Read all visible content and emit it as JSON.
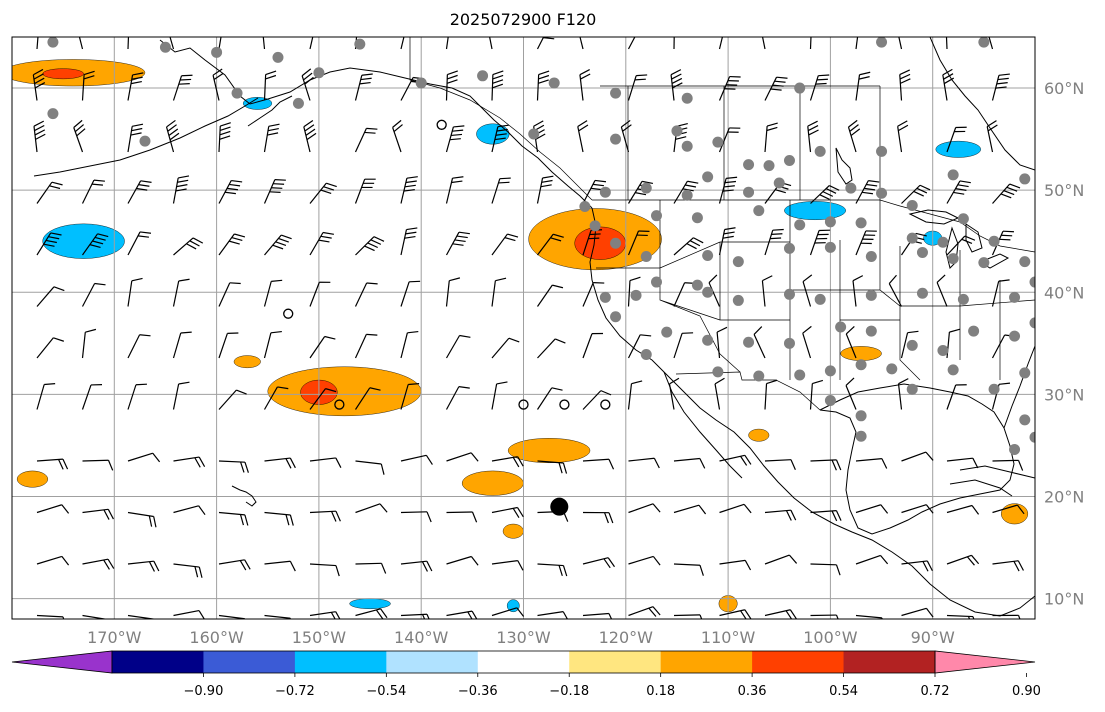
{
  "title": "2025072900 F120",
  "map": {
    "lon_range": [
      -180,
      -80
    ],
    "lat_range": [
      8,
      65
    ],
    "grid": true,
    "lon_ticks": [
      {
        "value": -170,
        "label": "170°W"
      },
      {
        "value": -160,
        "label": "160°W"
      },
      {
        "value": -150,
        "label": "150°W"
      },
      {
        "value": -140,
        "label": "140°W"
      },
      {
        "value": -130,
        "label": "130°W"
      },
      {
        "value": -120,
        "label": "120°W"
      },
      {
        "value": -110,
        "label": "110°W"
      },
      {
        "value": -100,
        "label": "100°W"
      },
      {
        "value": -90,
        "label": "90°W"
      }
    ],
    "lat_ticks": [
      {
        "value": 10,
        "label": "10°N"
      },
      {
        "value": 20,
        "label": "20°N"
      },
      {
        "value": 30,
        "label": "30°N"
      },
      {
        "value": 40,
        "label": "40°N"
      },
      {
        "value": 50,
        "label": "50°N"
      },
      {
        "value": 60,
        "label": "60°N"
      }
    ],
    "label_color": "#808080"
  },
  "colorbar": {
    "levels": [
      -0.9,
      -0.72,
      -0.54,
      -0.36,
      -0.18,
      0.18,
      0.36,
      0.54,
      0.72,
      0.9
    ],
    "labels": [
      "−0.90",
      "−0.72",
      "−0.54",
      "−0.36",
      "−0.18",
      "0.18",
      "0.36",
      "0.54",
      "0.72",
      "0.90"
    ],
    "colors": [
      "#9933cc",
      "#000088",
      "#3b5bd6",
      "#00bfff",
      "#b0e2ff",
      "#ffffff",
      "#ffe680",
      "#ffa500",
      "#ff4000",
      "#b22222",
      "#ff88aa"
    ],
    "extend": "both"
  },
  "shading": [
    {
      "color": "#ffa500",
      "lon": -174,
      "lat": 61.5,
      "rx": 7,
      "ry": 1.3
    },
    {
      "color": "#ff4000",
      "lon": -175,
      "lat": 61.4,
      "rx": 2,
      "ry": 0.5
    },
    {
      "color": "#00bfff",
      "lon": -173,
      "lat": 45,
      "rx": 4,
      "ry": 1.7
    },
    {
      "color": "#00bfff",
      "lon": -156,
      "lat": 58.5,
      "rx": 1.4,
      "ry": 0.6
    },
    {
      "color": "#00bfff",
      "lon": -133,
      "lat": 55.5,
      "rx": 1.6,
      "ry": 1
    },
    {
      "color": "#00bfff",
      "lon": -87.5,
      "lat": 54,
      "rx": 2.2,
      "ry": 0.8
    },
    {
      "color": "#00bfff",
      "lon": -101.5,
      "lat": 48,
      "rx": 3,
      "ry": 0.9
    },
    {
      "color": "#00bfff",
      "lon": -90,
      "lat": 45.3,
      "rx": 0.9,
      "ry": 0.7
    },
    {
      "color": "#ffa500",
      "lon": -123,
      "lat": 45.2,
      "rx": 6.5,
      "ry": 3
    },
    {
      "color": "#ff4000",
      "lon": -122.5,
      "lat": 44.8,
      "rx": 2.5,
      "ry": 1.6
    },
    {
      "color": "#ffa500",
      "lon": -147.5,
      "lat": 30.3,
      "rx": 7.5,
      "ry": 2.4
    },
    {
      "color": "#ff4000",
      "lon": -150,
      "lat": 30.2,
      "rx": 1.8,
      "ry": 1.2
    },
    {
      "color": "#ffa500",
      "lon": -157,
      "lat": 33.2,
      "rx": 1.3,
      "ry": 0.6
    },
    {
      "color": "#ffa500",
      "lon": -127.5,
      "lat": 24.5,
      "rx": 4,
      "ry": 1.2
    },
    {
      "color": "#ffa500",
      "lon": -133,
      "lat": 21.3,
      "rx": 3,
      "ry": 1.2
    },
    {
      "color": "#ffa500",
      "lon": -178,
      "lat": 21.7,
      "rx": 1.5,
      "ry": 0.8
    },
    {
      "color": "#ffa500",
      "lon": -131,
      "lat": 16.6,
      "rx": 1,
      "ry": 0.7
    },
    {
      "color": "#ffa500",
      "lon": -97,
      "lat": 34,
      "rx": 2,
      "ry": 0.7
    },
    {
      "color": "#ffa500",
      "lon": -107,
      "lat": 26,
      "rx": 1,
      "ry": 0.6
    },
    {
      "color": "#ffa500",
      "lon": -82,
      "lat": 18.3,
      "rx": 1.3,
      "ry": 1
    },
    {
      "color": "#ffa500",
      "lon": -110,
      "lat": 9.5,
      "rx": 0.9,
      "ry": 0.8
    },
    {
      "color": "#00bfff",
      "lon": -131,
      "lat": 9.3,
      "rx": 0.6,
      "ry": 0.6
    },
    {
      "color": "#00bfff",
      "lon": -145,
      "lat": 9.5,
      "rx": 2,
      "ry": 0.5
    }
  ],
  "stations": [
    [
      -176,
      64.5
    ],
    [
      -165,
      64
    ],
    [
      -160,
      63.5
    ],
    [
      -154,
      63
    ],
    [
      -146,
      64.3
    ],
    [
      -150,
      61.5
    ],
    [
      -140,
      60.5
    ],
    [
      -134,
      61.2
    ],
    [
      -127,
      60.5
    ],
    [
      -121,
      59.5
    ],
    [
      -114,
      59
    ],
    [
      -103,
      60
    ],
    [
      -95,
      64.5
    ],
    [
      -85,
      64.5
    ],
    [
      -176,
      57.5
    ],
    [
      -167,
      54.8
    ],
    [
      -158,
      59.5
    ],
    [
      -152,
      58.5
    ],
    [
      -129,
      55.5
    ],
    [
      -121,
      55
    ],
    [
      -115,
      55.8
    ],
    [
      -114,
      54.3
    ],
    [
      -111,
      54.7
    ],
    [
      -108,
      52.5
    ],
    [
      -106,
      52.4
    ],
    [
      -104,
      52.9
    ],
    [
      -101,
      53.8
    ],
    [
      -95,
      53.8
    ],
    [
      -88,
      51.5
    ],
    [
      -122,
      49.8
    ],
    [
      -118,
      50.2
    ],
    [
      -114,
      49.5
    ],
    [
      -112,
      51.3
    ],
    [
      -108,
      49.8
    ],
    [
      -105,
      50.7
    ],
    [
      -98,
      50.2
    ],
    [
      -95,
      49.7
    ],
    [
      -92,
      48.5
    ],
    [
      -87,
      47.2
    ],
    [
      -81,
      51.1
    ],
    [
      -124,
      48.4
    ],
    [
      -123,
      46.5
    ],
    [
      -121,
      44.8
    ],
    [
      -117,
      47.5
    ],
    [
      -113,
      47.3
    ],
    [
      -107,
      48
    ],
    [
      -103,
      46.6
    ],
    [
      -100,
      46.9
    ],
    [
      -97,
      46.8
    ],
    [
      -92,
      45.3
    ],
    [
      -89,
      44.9
    ],
    [
      -84,
      45
    ],
    [
      -81,
      43
    ],
    [
      -118,
      43.5
    ],
    [
      -112,
      43.6
    ],
    [
      -109,
      43
    ],
    [
      -104,
      44.3
    ],
    [
      -100,
      44.4
    ],
    [
      -96,
      43.5
    ],
    [
      -91,
      43.9
    ],
    [
      -88,
      43.3
    ],
    [
      -85,
      42.9
    ],
    [
      -122,
      39.5
    ],
    [
      -119,
      39.7
    ],
    [
      -117,
      41
    ],
    [
      -113,
      40.7
    ],
    [
      -112,
      40
    ],
    [
      -109,
      39.2
    ],
    [
      -104,
      39.8
    ],
    [
      -101,
      39.3
    ],
    [
      -96,
      39.7
    ],
    [
      -91,
      39.9
    ],
    [
      -87,
      39.3
    ],
    [
      -82,
      39.5
    ],
    [
      -80,
      41
    ],
    [
      -121,
      37.6
    ],
    [
      -116,
      36.1
    ],
    [
      -112,
      35.3
    ],
    [
      -108,
      35.1
    ],
    [
      -104,
      35
    ],
    [
      -99,
      36.6
    ],
    [
      -96,
      36.2
    ],
    [
      -92,
      34.8
    ],
    [
      -89,
      34.3
    ],
    [
      -86,
      36.2
    ],
    [
      -82,
      35.7
    ],
    [
      -80,
      37
    ],
    [
      -118,
      33.9
    ],
    [
      -111,
      32.2
    ],
    [
      -107,
      31.8
    ],
    [
      -103,
      31.9
    ],
    [
      -100,
      32.3
    ],
    [
      -97,
      32.9
    ],
    [
      -94,
      32.5
    ],
    [
      -92,
      30.5
    ],
    [
      -88,
      32.4
    ],
    [
      -84,
      30.5
    ],
    [
      -81,
      32.1
    ],
    [
      -100,
      29.4
    ],
    [
      -97,
      27.9
    ],
    [
      -97,
      25.9
    ],
    [
      -81,
      27.5
    ],
    [
      -82,
      24.6
    ],
    [
      -80,
      25.8
    ]
  ],
  "calm_circles": [
    [
      -153,
      37.9
    ],
    [
      -148,
      29
    ],
    [
      -130,
      29
    ],
    [
      -126,
      29
    ],
    [
      -122,
      29
    ],
    [
      -138,
      56.4
    ]
  ],
  "large_dot": [
    -126.5,
    19
  ]
}
